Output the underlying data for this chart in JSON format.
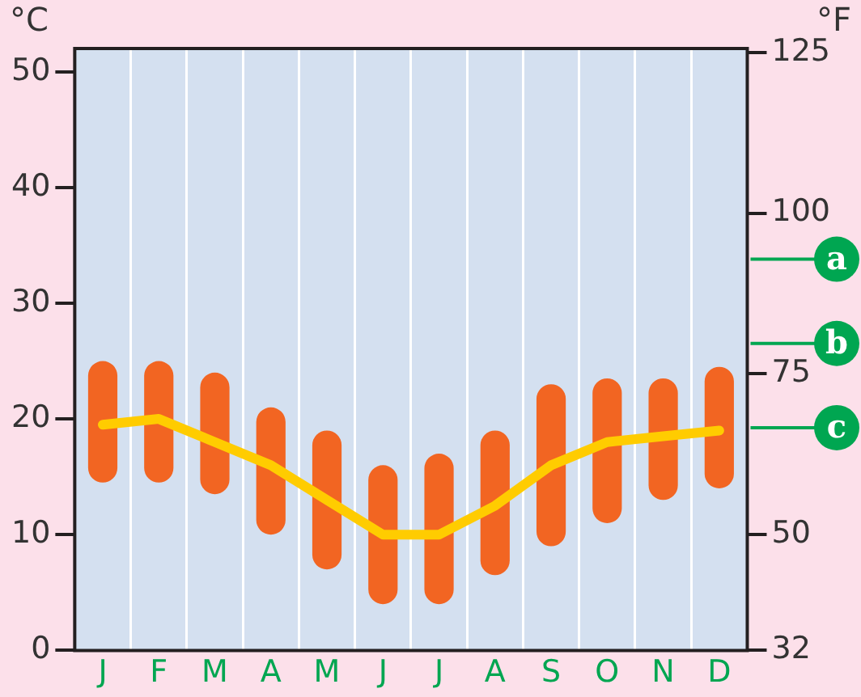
{
  "chart_data": {
    "type": "bar",
    "ylabel": "°C",
    "y2label": "°F",
    "categories": [
      "J",
      "F",
      "M",
      "A",
      "M",
      "J",
      "J",
      "A",
      "S",
      "O",
      "N",
      "D"
    ],
    "series": [
      {
        "color": "#f26522",
        "base": [
          14.5,
          14.5,
          13.5,
          10,
          7,
          4,
          4,
          6.5,
          9,
          11,
          13,
          14
        ],
        "values": [
          10.5,
          10.5,
          10.5,
          11,
          12,
          12,
          13,
          12.5,
          14,
          12.5,
          10.5,
          10.5
        ]
      },
      {
        "type": "line",
        "color": "#ffcc00",
        "values": [
          19.5,
          20,
          18,
          16,
          13,
          10,
          10,
          12.5,
          16,
          18,
          18.5,
          19
        ]
      }
    ],
    "ylim": [
      0,
      52
    ],
    "yticks": [
      0,
      10,
      20,
      30,
      40,
      50
    ],
    "y2lim": [
      32,
      125.6
    ],
    "y2ticks": [
      32,
      50,
      75,
      100,
      125
    ],
    "grid": "x",
    "marker": "none",
    "annotations": [
      "a",
      "b",
      "c"
    ]
  }
}
